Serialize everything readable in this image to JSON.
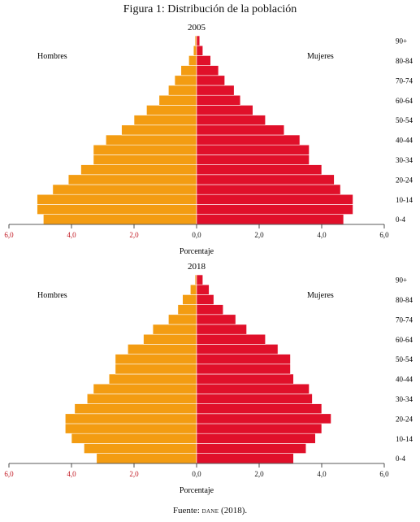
{
  "figure": {
    "title": "Figura 1: Distribución de la población",
    "source_prefix": "Fuente:",
    "source_org": "dane",
    "source_suffix": "(2018)."
  },
  "colors": {
    "men": "#f39c12",
    "women": "#e0102a",
    "neg_tick": "#c0141e"
  },
  "chart_data": [
    {
      "type": "bar",
      "orientation": "horizontal-population-pyramid",
      "title": "2005",
      "xlabel": "Porcentaje",
      "xlim": [
        -6,
        6
      ],
      "x_tick_labels": [
        "6,0",
        "4,0",
        "2,0",
        "0,0",
        "2,0",
        "4,0",
        "6,0"
      ],
      "categories": [
        "0-4",
        "5-9",
        "10-14",
        "15-19",
        "20-24",
        "25-29",
        "30-34",
        "35-39",
        "40-44",
        "45-49",
        "50-54",
        "55-59",
        "60-64",
        "65-69",
        "70-74",
        "75-79",
        "80-84",
        "85-89",
        "90+"
      ],
      "category_tick_labels": [
        "0-4",
        "10-14",
        "20-24",
        "30-34",
        "40-44",
        "50-54",
        "60-64",
        "70-74",
        "80-84",
        "90+"
      ],
      "series": [
        {
          "name": "Hombres",
          "values": [
            4.9,
            5.1,
            5.1,
            4.6,
            4.1,
            3.7,
            3.3,
            3.3,
            2.9,
            2.4,
            2.0,
            1.6,
            1.2,
            0.9,
            0.7,
            0.5,
            0.25,
            0.1,
            0.05
          ]
        },
        {
          "name": "Mujeres",
          "values": [
            4.7,
            5.0,
            5.0,
            4.6,
            4.4,
            4.0,
            3.6,
            3.6,
            3.3,
            2.8,
            2.2,
            1.8,
            1.4,
            1.2,
            0.9,
            0.7,
            0.45,
            0.2,
            0.1
          ]
        }
      ]
    },
    {
      "type": "bar",
      "orientation": "horizontal-population-pyramid",
      "title": "2018",
      "xlabel": "Porcentaje",
      "xlim": [
        -6,
        6
      ],
      "x_tick_labels": [
        "6,0",
        "4,0",
        "2,0",
        "0,0",
        "2,0",
        "4,0",
        "6,0"
      ],
      "categories": [
        "0-4",
        "5-9",
        "10-14",
        "15-19",
        "20-24",
        "25-29",
        "30-34",
        "35-39",
        "40-44",
        "45-49",
        "50-54",
        "55-59",
        "60-64",
        "65-69",
        "70-74",
        "75-79",
        "80-84",
        "85-89",
        "90+"
      ],
      "category_tick_labels": [
        "0-4",
        "10-14",
        "20-24",
        "30-34",
        "40-44",
        "50-54",
        "60-64",
        "70-74",
        "80-84",
        "90+"
      ],
      "series": [
        {
          "name": "Hombres",
          "values": [
            3.2,
            3.6,
            4.0,
            4.2,
            4.2,
            3.9,
            3.5,
            3.3,
            2.8,
            2.6,
            2.6,
            2.2,
            1.7,
            1.4,
            0.9,
            0.6,
            0.45,
            0.2,
            0.05
          ]
        },
        {
          "name": "Mujeres",
          "values": [
            3.1,
            3.5,
            3.8,
            4.0,
            4.3,
            4.0,
            3.7,
            3.6,
            3.1,
            3.0,
            3.0,
            2.6,
            2.2,
            1.6,
            1.25,
            0.85,
            0.55,
            0.4,
            0.2
          ]
        }
      ]
    }
  ]
}
